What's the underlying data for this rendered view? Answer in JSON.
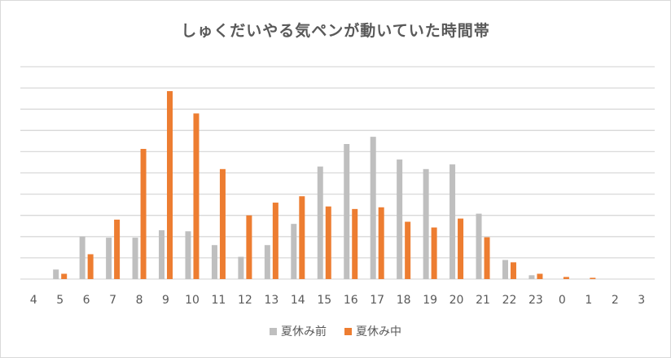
{
  "chart_data": {
    "type": "bar",
    "title": "しゅくだいやる気ペンが動いていた時間帯",
    "categories": [
      "4",
      "5",
      "6",
      "7",
      "8",
      "9",
      "10",
      "11",
      "12",
      "13",
      "14",
      "15",
      "16",
      "17",
      "18",
      "19",
      "20",
      "21",
      "22",
      "23",
      "0",
      "1",
      "2",
      "3"
    ],
    "series": [
      {
        "name": "夏休み前",
        "color": "#bfbfbf",
        "values": [
          0,
          0.45,
          2.0,
          1.95,
          1.95,
          2.3,
          2.25,
          1.6,
          1.05,
          1.6,
          2.6,
          5.3,
          6.36,
          6.7,
          5.63,
          5.18,
          5.4,
          3.08,
          0.9,
          0.18,
          0,
          0,
          0,
          0
        ]
      },
      {
        "name": "夏休み中",
        "color": "#ed7d31",
        "values": [
          0,
          0.25,
          1.17,
          2.8,
          6.13,
          8.85,
          7.8,
          5.18,
          3.0,
          3.6,
          3.9,
          3.42,
          3.3,
          3.38,
          2.7,
          2.43,
          2.85,
          1.97,
          0.79,
          0.25,
          0.1,
          0.06,
          0,
          0
        ]
      }
    ],
    "ylim": [
      0,
      10
    ],
    "grid": true,
    "y_tick_labels_shown": false,
    "legend_position": "bottom"
  }
}
